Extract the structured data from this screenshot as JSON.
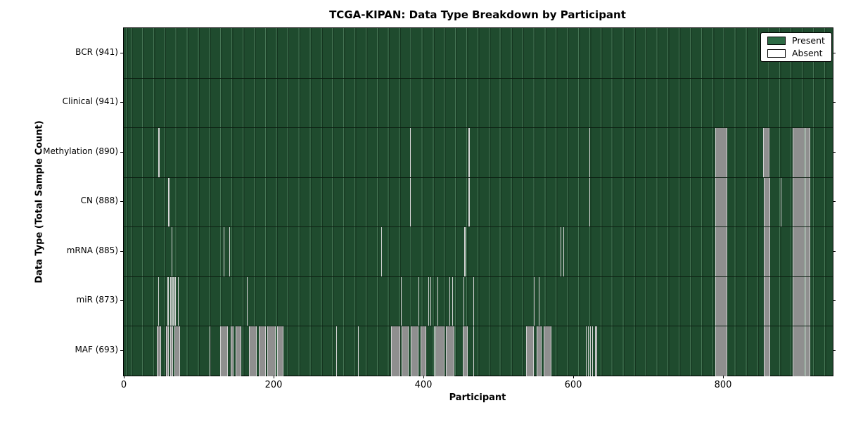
{
  "colors": {
    "present_fill": "#1f4b2e",
    "legend_present": "#2d6b45",
    "legend_absent": "#ffffff",
    "absent_wide": "#8f8f8f",
    "absent_thin": "#d6d6d6",
    "frame": "#000000"
  },
  "legend": {
    "items": [
      {
        "label": "Present",
        "color": "#2d6b45"
      },
      {
        "label": "Absent",
        "color": "#ffffff"
      }
    ]
  },
  "chart_data": {
    "type": "heatmap",
    "title": "TCGA-KIPAN: Data Type Breakdown by Participant",
    "xlabel": "Participant",
    "ylabel": "Data Type (Total Sample Count)",
    "legend_position": "upper right",
    "grid": "cell-edge vertical lines",
    "x_axis": {
      "min": 0,
      "max": 947,
      "ticks": [
        0,
        200,
        400,
        600,
        800
      ]
    },
    "value_states": {
      "present": "Present",
      "absent": "Absent"
    },
    "rows": [
      {
        "key": "bcr",
        "label": "BCR (941)",
        "data_type": "BCR",
        "total_samples": 941,
        "absent_ranges": []
      },
      {
        "key": "clinical",
        "label": "Clinical (941)",
        "data_type": "Clinical",
        "total_samples": 941,
        "absent_ranges": []
      },
      {
        "key": "methylation",
        "label": "Methylation (890)",
        "data_type": "Methylation",
        "total_samples": 890,
        "absent_ranges": [
          [
            46,
            48
          ],
          [
            382,
            383
          ],
          [
            460,
            462
          ],
          [
            622,
            623
          ],
          [
            790,
            806
          ],
          [
            854,
            862
          ],
          [
            893,
            909
          ],
          [
            910,
            917
          ]
        ]
      },
      {
        "key": "cn",
        "label": "CN (888)",
        "data_type": "CN",
        "total_samples": 888,
        "absent_ranges": [
          [
            59,
            61
          ],
          [
            382,
            383
          ],
          [
            460,
            462
          ],
          [
            622,
            623
          ],
          [
            790,
            806
          ],
          [
            855,
            863
          ],
          [
            877,
            878
          ],
          [
            893,
            909
          ],
          [
            910,
            917
          ]
        ]
      },
      {
        "key": "mrna",
        "label": "mRNA (885)",
        "data_type": "mRNA",
        "total_samples": 885,
        "absent_ranges": [
          [
            64,
            65
          ],
          [
            133,
            134
          ],
          [
            141,
            142
          ],
          [
            344,
            345
          ],
          [
            455,
            457
          ],
          [
            583,
            584
          ],
          [
            587,
            588
          ],
          [
            790,
            806
          ],
          [
            855,
            863
          ],
          [
            893,
            909
          ],
          [
            910,
            917
          ]
        ]
      },
      {
        "key": "mir",
        "label": "miR (873)",
        "data_type": "miR",
        "total_samples": 873,
        "absent_ranges": [
          [
            46,
            47
          ],
          [
            58,
            60
          ],
          [
            62,
            64
          ],
          [
            65,
            67
          ],
          [
            68,
            70
          ],
          [
            72,
            73
          ],
          [
            164,
            165
          ],
          [
            370,
            371
          ],
          [
            394,
            395
          ],
          [
            407,
            408
          ],
          [
            410,
            411
          ],
          [
            419,
            420
          ],
          [
            435,
            436
          ],
          [
            439,
            440
          ],
          [
            454,
            455
          ],
          [
            467,
            468
          ],
          [
            548,
            549
          ],
          [
            554,
            555
          ],
          [
            790,
            806
          ],
          [
            855,
            863
          ],
          [
            893,
            909
          ],
          [
            910,
            917
          ]
        ]
      },
      {
        "key": "maf",
        "label": "MAF (693)",
        "data_type": "MAF",
        "total_samples": 693,
        "absent_ranges": [
          [
            44,
            50
          ],
          [
            56,
            60
          ],
          [
            62,
            66
          ],
          [
            68,
            75
          ],
          [
            115,
            116
          ],
          [
            129,
            139
          ],
          [
            143,
            147
          ],
          [
            149,
            157
          ],
          [
            167,
            178
          ],
          [
            180,
            190
          ],
          [
            192,
            203
          ],
          [
            205,
            213
          ],
          [
            284,
            285
          ],
          [
            313,
            314
          ],
          [
            357,
            369
          ],
          [
            371,
            381
          ],
          [
            383,
            394
          ],
          [
            396,
            404
          ],
          [
            414,
            415
          ],
          [
            416,
            428
          ],
          [
            430,
            442
          ],
          [
            453,
            459
          ],
          [
            467,
            468
          ],
          [
            537,
            548
          ],
          [
            551,
            558
          ],
          [
            561,
            571
          ],
          [
            617,
            618
          ],
          [
            620,
            621
          ],
          [
            623,
            624
          ],
          [
            626,
            627
          ],
          [
            629,
            632
          ],
          [
            790,
            806
          ],
          [
            855,
            863
          ],
          [
            893,
            909
          ],
          [
            910,
            917
          ]
        ]
      }
    ]
  }
}
